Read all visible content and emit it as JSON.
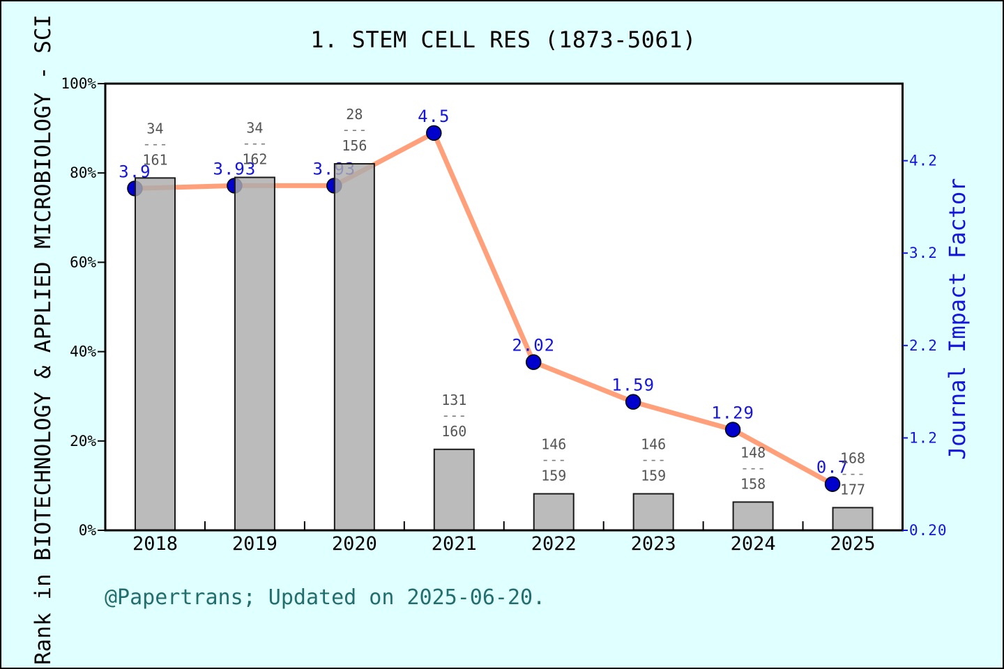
{
  "title": "1. STEM CELL RES (1873-5061)",
  "attribution": "@Papertrans; Updated on 2025-06-20.",
  "left_axis": {
    "title": "Rank in BIOTECHNOLOGY & APPLIED MICROBIOLOGY - SCI",
    "ticks": [
      "0%",
      "20%",
      "40%",
      "60%",
      "80%",
      "100%"
    ],
    "tick_values": [
      0,
      20,
      40,
      60,
      80,
      100
    ]
  },
  "right_axis": {
    "title": "Journal Impact Factor",
    "ticks": [
      "0.20",
      "1.2",
      "2.2",
      "3.2",
      "4.2"
    ],
    "tick_values": [
      0.2,
      1.2,
      2.2,
      3.2,
      4.2
    ]
  },
  "colors": {
    "background": "#E0FFFF",
    "plot_background": "#FFFFFF",
    "bar_fill": "#ACACAC",
    "bar_edge": "#1A1A1A",
    "line": "#FFA07A",
    "marker": "#0000CD",
    "marker_edge": "#000000",
    "value_label": "#1414DD",
    "axis_blue": "#1414DD",
    "fraction_text": "#555555",
    "fraction_dash": "#808080",
    "attribution": "#226E6E",
    "axis_black": "#000000"
  },
  "chart_data": {
    "type": "bar+line",
    "categories": [
      "2018",
      "2019",
      "2020",
      "2021",
      "2022",
      "2023",
      "2024",
      "2025"
    ],
    "series": [
      {
        "name": "Rank in category (rank/total)",
        "type": "bar",
        "axis": "left",
        "fractions": [
          "34/161",
          "34/162",
          "28/156",
          "131/160",
          "146/159",
          "146/159",
          "148/158",
          "168/177"
        ],
        "numerators": [
          34,
          34,
          28,
          131,
          146,
          146,
          148,
          168
        ],
        "denominators": [
          161,
          162,
          156,
          160,
          159,
          159,
          158,
          177
        ],
        "bar_percent": [
          78.88,
          79.01,
          82.05,
          18.13,
          8.18,
          8.18,
          6.33,
          5.08
        ]
      },
      {
        "name": "Journal Impact Factor",
        "type": "line",
        "axis": "right",
        "values": [
          3.9,
          3.93,
          3.93,
          4.5,
          2.02,
          1.59,
          1.29,
          0.7
        ],
        "labels": [
          "3.9",
          "3.93",
          "3.93",
          "4.5",
          "2.02",
          "1.59",
          "1.29",
          "0.7"
        ]
      }
    ],
    "left_ylim": [
      0,
      100
    ],
    "right_tick_values": [
      0.2,
      1.2,
      2.2,
      3.2,
      4.2
    ],
    "legend": "none",
    "grid": false
  }
}
